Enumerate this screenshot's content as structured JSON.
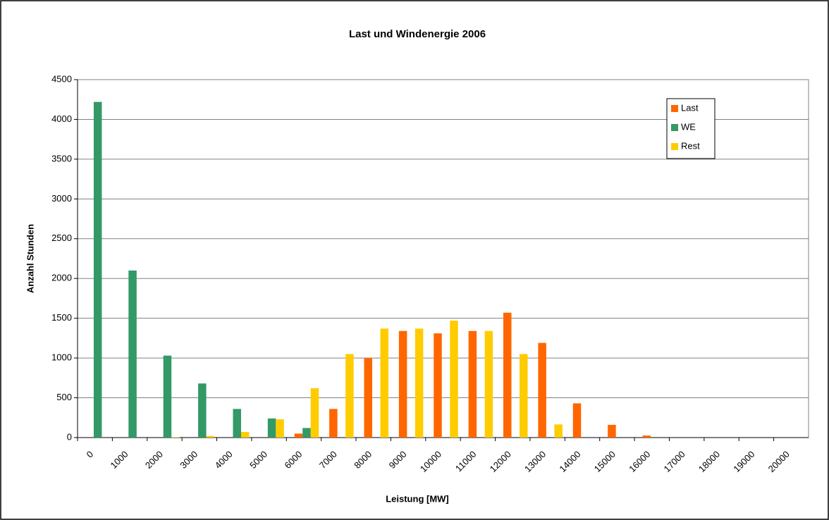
{
  "chart_data": {
    "type": "bar",
    "title": "Last und Windenergie 2006",
    "x_label": "Leistung [MW]",
    "y_label": "Anzahl Stunden",
    "categories": [
      "0",
      "1000",
      "2000",
      "3000",
      "4000",
      "5000",
      "6000",
      "7000",
      "8000",
      "9000",
      "10000",
      "11000",
      "12000",
      "13000",
      "14000",
      "15000",
      "16000",
      "17000",
      "18000",
      "19000",
      "20000"
    ],
    "series": [
      {
        "name": "Last",
        "color": "#ff6600",
        "values": [
          0,
          0,
          0,
          0,
          0,
          0,
          50,
          360,
          1000,
          1340,
          1310,
          1340,
          1570,
          1190,
          430,
          160,
          25,
          0,
          0,
          0,
          0
        ]
      },
      {
        "name": "WE",
        "color": "#339966",
        "values": [
          4220,
          2100,
          1030,
          680,
          360,
          240,
          120,
          0,
          0,
          0,
          0,
          0,
          0,
          0,
          0,
          0,
          0,
          0,
          0,
          0,
          0
        ]
      },
      {
        "name": "Rest",
        "color": "#ffcc00",
        "values": [
          0,
          0,
          5,
          20,
          70,
          230,
          620,
          1050,
          1370,
          1370,
          1470,
          1340,
          1050,
          165,
          0,
          0,
          0,
          0,
          0,
          0,
          0
        ]
      }
    ],
    "ylim": [
      0,
      4500
    ],
    "yticks": [
      0,
      500,
      1000,
      1500,
      2000,
      2500,
      3000,
      3500,
      4000,
      4500
    ],
    "grid": true,
    "legend": "upper right"
  }
}
